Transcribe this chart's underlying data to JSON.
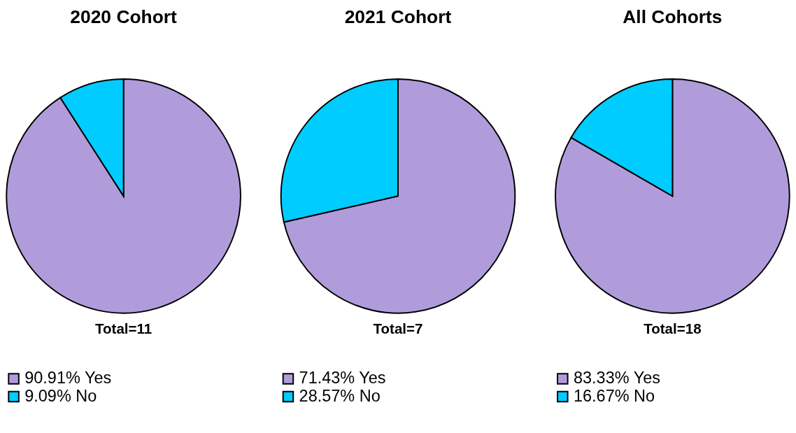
{
  "chart_data": [
    {
      "type": "pie",
      "title": "2020 Cohort",
      "categories": [
        "Yes",
        "No"
      ],
      "values": [
        90.91,
        9.09
      ],
      "colors": [
        "#b19cdb",
        "#00ccff"
      ],
      "value_labels": [
        "90.91%",
        "9.09%"
      ],
      "annotations": [
        "Total=11"
      ],
      "legend": "bottom"
    },
    {
      "type": "pie",
      "title": "2021 Cohort",
      "categories": [
        "Yes",
        "No"
      ],
      "values": [
        71.43,
        28.57
      ],
      "colors": [
        "#b19cdb",
        "#00ccff"
      ],
      "value_labels": [
        "71.43%",
        "28.57%"
      ],
      "annotations": [
        "Total=7"
      ],
      "legend": "bottom"
    },
    {
      "type": "pie",
      "title": "All Cohorts",
      "categories": [
        "Yes",
        "No"
      ],
      "values": [
        83.33,
        16.67
      ],
      "colors": [
        "#b19cdb",
        "#00ccff"
      ],
      "value_labels": [
        "83.33%",
        "16.67%"
      ],
      "annotations": [
        "Total=18"
      ],
      "legend": "bottom"
    }
  ]
}
